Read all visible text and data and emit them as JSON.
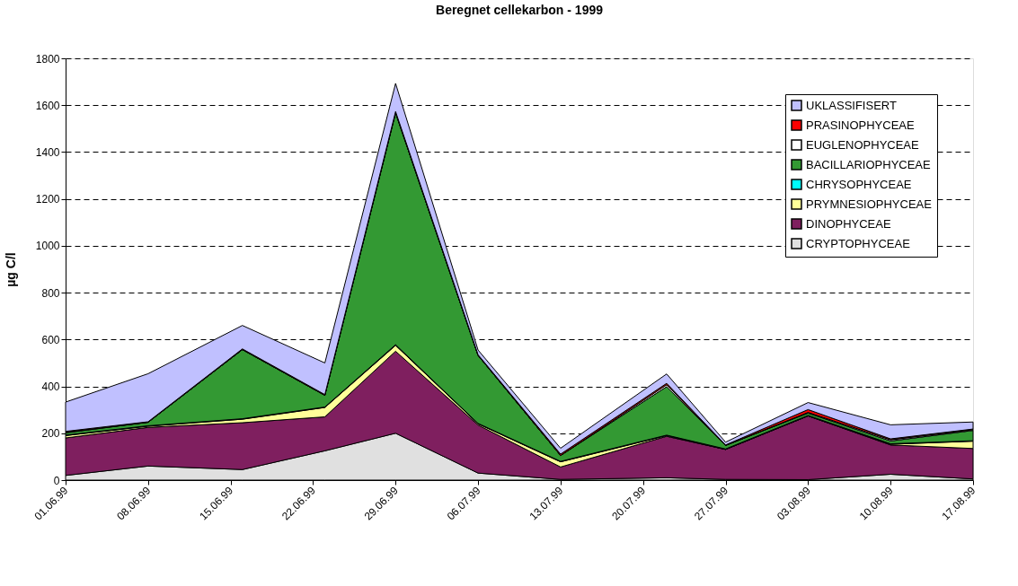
{
  "chart_data": {
    "type": "area",
    "stacked": true,
    "title": "Beregnet cellekarbon - 1999",
    "ylabel": "µg C/l",
    "x": [
      "1999-06-01",
      "1999-06-08",
      "1999-06-16",
      "1999-06-23",
      "1999-06-29",
      "1999-07-06",
      "1999-07-13",
      "1999-07-22",
      "1999-07-27",
      "1999-08-03",
      "1999-08-10",
      "1999-08-17"
    ],
    "xlim": [
      "1999-06-01",
      "1999-08-17"
    ],
    "xticks": [
      {
        "value": "1999-06-01",
        "label": "01.06.99"
      },
      {
        "value": "1999-06-08",
        "label": "08.06.99"
      },
      {
        "value": "1999-06-15",
        "label": "15.06.99"
      },
      {
        "value": "1999-06-22",
        "label": "22.06.99"
      },
      {
        "value": "1999-06-29",
        "label": "29.06.99"
      },
      {
        "value": "1999-07-06",
        "label": "06.07.99"
      },
      {
        "value": "1999-07-13",
        "label": "13.07.99"
      },
      {
        "value": "1999-07-20",
        "label": "20.07.99"
      },
      {
        "value": "1999-07-27",
        "label": "27.07.99"
      },
      {
        "value": "1999-08-03",
        "label": "03.08.99"
      },
      {
        "value": "1999-08-10",
        "label": "10.08.99"
      },
      {
        "value": "1999-08-17",
        "label": "17.08.99"
      }
    ],
    "ylim": [
      0,
      1800
    ],
    "yticks": [
      0,
      200,
      400,
      600,
      800,
      1000,
      1200,
      1400,
      1600,
      1800
    ],
    "grid": "y",
    "legend": "top right",
    "series": [
      {
        "name": "CRYPTOPHYCEAE",
        "color": "#e0e0e0",
        "values": [
          20,
          60,
          45,
          125,
          200,
          30,
          3,
          10,
          3,
          2,
          25,
          5
        ]
      },
      {
        "name": "DINOPHYCEAE",
        "color": "#7f1f5f",
        "values": [
          160,
          165,
          200,
          145,
          350,
          205,
          53,
          177,
          128,
          272,
          125,
          130
        ]
      },
      {
        "name": "PRYMNESIOPHYCEAE",
        "color": "#ffff99",
        "values": [
          10,
          5,
          15,
          40,
          25,
          5,
          22,
          3,
          0,
          0,
          3,
          31
        ]
      },
      {
        "name": "CHRYSOPHYCEAE",
        "color": "#00ffff",
        "values": [
          2,
          2,
          2,
          2,
          3,
          2,
          2,
          2,
          2,
          2,
          2,
          2
        ]
      },
      {
        "name": "BACILLARIOPHYCEAE",
        "color": "#339933",
        "values": [
          10,
          15,
          295,
          50,
          990,
          290,
          25,
          207,
          15,
          10,
          12,
          44
        ]
      },
      {
        "name": "EUGLENOPHYCEAE",
        "color": "#ffffff",
        "values": [
          3,
          0,
          0,
          0,
          0,
          0,
          0,
          8,
          0,
          3,
          5,
          3
        ]
      },
      {
        "name": "PRASINOPHYCEAE",
        "color": "#ff0000",
        "values": [
          3,
          2,
          3,
          3,
          5,
          3,
          6,
          6,
          2,
          12,
          4,
          3
        ]
      },
      {
        "name": "UKLASSIFISERT",
        "color": "#c0c0ff",
        "values": [
          125,
          205,
          100,
          135,
          120,
          20,
          25,
          40,
          12,
          30,
          60,
          30
        ]
      }
    ]
  }
}
